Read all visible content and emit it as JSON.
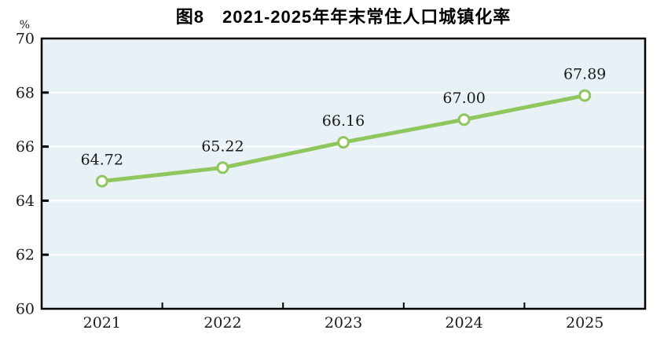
{
  "chart_data": {
    "type": "line",
    "title": "图8　2021-2025年年末常住人口城镇化率",
    "ylabel": "%",
    "categories": [
      "2021",
      "2022",
      "2023",
      "2024",
      "2025"
    ],
    "values": [
      64.72,
      65.22,
      66.16,
      67.0,
      67.89
    ],
    "value_labels": [
      "64.72",
      "65.22",
      "66.16",
      "67.00",
      "67.89"
    ],
    "ylim": [
      60,
      70
    ],
    "yticks": [
      60,
      62,
      64,
      66,
      68,
      70
    ],
    "grid": true,
    "legend": "none"
  },
  "colors": {
    "line": "#8fc75e",
    "marker_fill": "#ffffff",
    "plot_background": "#e8f1f6",
    "gridline": "#ffffff",
    "axis": "#000000",
    "text": "#1a1a1a"
  }
}
